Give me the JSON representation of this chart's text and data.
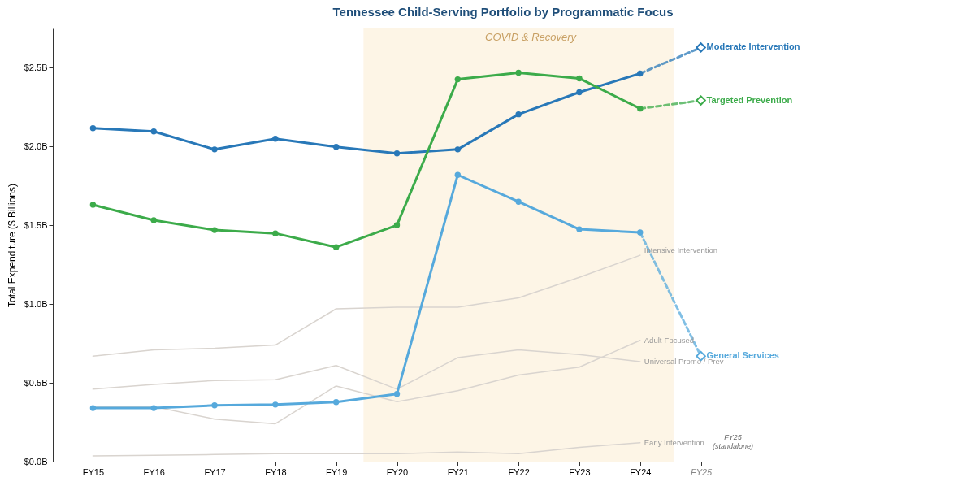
{
  "chart_data": {
    "type": "line",
    "title": "Tennessee Child-Serving Portfolio by Programmatic Focus",
    "ylabel": "Total Expenditure ($ Billions)",
    "categories": [
      "FY15",
      "FY16",
      "FY17",
      "FY18",
      "FY19",
      "FY20",
      "FY21",
      "FY22",
      "FY23",
      "FY24",
      "FY25"
    ],
    "ylim": [
      0,
      2.75
    ],
    "yticks": [
      {
        "value": 0,
        "label": "$0.0B"
      },
      {
        "value": 0.5,
        "label": "$0.5B"
      },
      {
        "value": 1,
        "label": "$1.0B"
      },
      {
        "value": 1.5,
        "label": "$1.5B"
      },
      {
        "value": 2,
        "label": "$2.0B"
      },
      {
        "value": 2.5,
        "label": "$2.5B"
      }
    ],
    "bands": [
      {
        "axis": "x",
        "from": "FY20",
        "to": "FY24",
        "label": "COVID & Recovery",
        "color": "#fdf5e6"
      }
    ],
    "annotations": [
      "FY25\n(standalone)"
    ],
    "series": [
      {
        "name": "Intensive Intervention",
        "color": "#d9d4cf",
        "marker": "none",
        "values": [
          0.67,
          0.71,
          0.72,
          0.74,
          0.97,
          0.98,
          0.98,
          1.04,
          1.17,
          1.31,
          null
        ]
      },
      {
        "name": "Universal Promo / Prev",
        "color": "#d9d4cf",
        "marker": "none",
        "values": [
          0.46,
          0.49,
          0.515,
          0.52,
          0.61,
          0.46,
          0.66,
          0.71,
          0.68,
          0.635,
          null
        ]
      },
      {
        "name": "Adult-Focused",
        "color": "#d9d4cf",
        "marker": "none",
        "values": [
          0.35,
          0.35,
          0.27,
          0.24,
          0.48,
          0.38,
          0.45,
          0.55,
          0.6,
          0.77,
          null
        ]
      },
      {
        "name": "Early Intervention",
        "color": "#d9d4cf",
        "marker": "none",
        "values": [
          0.036,
          0.04,
          0.045,
          0.05,
          0.05,
          0.05,
          0.06,
          0.05,
          0.09,
          0.12,
          null
        ]
      },
      {
        "name": "Moderate Intervention",
        "color": "#2878b8",
        "marker": "circle",
        "values": [
          2.117,
          2.096,
          1.982,
          2.05,
          1.998,
          1.957,
          1.982,
          2.205,
          2.345,
          2.464,
          null
        ]
      },
      {
        "color": "#2878b8",
        "marker": "diamond",
        "line_style": "dashed",
        "values": [
          null,
          null,
          null,
          null,
          null,
          null,
          null,
          null,
          null,
          2.464,
          2.629
        ]
      },
      {
        "name": "Targeted Prevention",
        "color": "#3cab4a",
        "marker": "circle",
        "values": [
          1.63,
          1.532,
          1.47,
          1.449,
          1.361,
          1.501,
          2.427,
          2.469,
          2.433,
          2.241,
          null
        ]
      },
      {
        "color": "#3cab4a",
        "marker": "diamond",
        "line_style": "dashed",
        "values": [
          null,
          null,
          null,
          null,
          null,
          null,
          null,
          null,
          null,
          2.241,
          2.293
        ]
      },
      {
        "name": "General Services",
        "color": "#56a9dc",
        "marker": "circle",
        "values": [
          0.34,
          0.34,
          0.357,
          0.362,
          0.378,
          0.43,
          1.82,
          1.65,
          1.475,
          1.455,
          null
        ]
      },
      {
        "color": "#56a9dc",
        "marker": "diamond",
        "line_style": "dashed",
        "values": [
          null,
          null,
          null,
          null,
          null,
          null,
          null,
          null,
          null,
          1.455,
          0.67
        ]
      }
    ]
  }
}
